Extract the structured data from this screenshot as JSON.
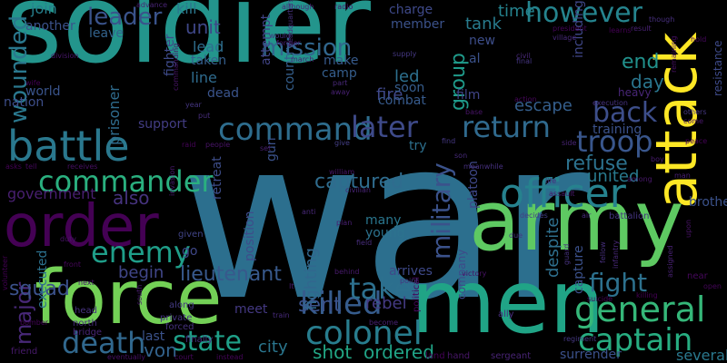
{
  "title": "",
  "words": [
    {
      "text": "war",
      "color": "#2c6f8e"
    },
    {
      "text": "soldier",
      "color": "#23958c"
    },
    {
      "text": "men",
      "color": "#20a486"
    },
    {
      "text": "army",
      "color": "#5ec962"
    },
    {
      "text": "force",
      "color": "#73d056"
    },
    {
      "text": "attack",
      "color": "#fde725"
    },
    {
      "text": "order",
      "color": "#440154"
    },
    {
      "text": "battle",
      "color": "#2a788e"
    },
    {
      "text": "officer",
      "color": "#26828e"
    },
    {
      "text": "general",
      "color": "#35b779"
    },
    {
      "text": "captain",
      "color": "#27ad81"
    },
    {
      "text": "colonel",
      "color": "#287d8e"
    },
    {
      "text": "command",
      "color": "#2e6d8e"
    },
    {
      "text": "commander",
      "color": "#2ab07f"
    },
    {
      "text": "killed",
      "color": "#365c8d"
    },
    {
      "text": "troop",
      "color": "#39568c"
    },
    {
      "text": "enemy",
      "color": "#1f9e89"
    },
    {
      "text": "return",
      "color": "#306a8e"
    },
    {
      "text": "later",
      "color": "#3e4a89"
    },
    {
      "text": "death",
      "color": "#31688e"
    },
    {
      "text": "state",
      "color": "#1fa088"
    },
    {
      "text": "take",
      "color": "#2d708e"
    },
    {
      "text": "leader",
      "color": "#3a538b"
    },
    {
      "text": "however",
      "color": "#25848e"
    },
    {
      "text": "wounded",
      "color": "#2a788e"
    },
    {
      "text": "fight",
      "color": "#2d718e"
    },
    {
      "text": "back",
      "color": "#3d4e8a"
    },
    {
      "text": "military",
      "color": "#3b528b"
    },
    {
      "text": "mission",
      "color": "#31678e"
    },
    {
      "text": "major",
      "color": "#482878"
    },
    {
      "text": "lieutenant",
      "color": "#38598c"
    },
    {
      "text": "captured",
      "color": "#2f6c8e"
    },
    {
      "text": "refuse",
      "color": "#2c728e"
    },
    {
      "text": "group",
      "color": "#1f9a8a"
    },
    {
      "text": "unit",
      "color": "#3f4788"
    },
    {
      "text": "end",
      "color": "#21918c"
    },
    {
      "text": "squad",
      "color": "#3b518b"
    },
    {
      "text": "also",
      "color": "#46337e"
    },
    {
      "text": "sent",
      "color": "#3b528b"
    },
    {
      "text": "shot",
      "color": "#22a785"
    },
    {
      "text": "ordered",
      "color": "#20a386"
    },
    {
      "text": "city",
      "color": "#2a768e"
    },
    {
      "text": "von",
      "color": "#33638d"
    },
    {
      "text": "despite",
      "color": "#2e6f8e"
    },
    {
      "text": "united",
      "color": "#297a8e"
    },
    {
      "text": "government",
      "color": "#481f70"
    },
    {
      "text": "escape",
      "color": "#355f8d"
    },
    {
      "text": "fighting",
      "color": "#31678e"
    },
    {
      "text": "rebel",
      "color": "#443a83"
    },
    {
      "text": "begin",
      "color": "#404688"
    },
    {
      "text": "day",
      "color": "#2a768e"
    },
    {
      "text": "tank",
      "color": "#287c8e"
    },
    {
      "text": "time",
      "color": "#25838e"
    },
    {
      "text": "kill",
      "color": "#2a788e"
    },
    {
      "text": "join",
      "color": "#26818e"
    },
    {
      "text": "lead",
      "color": "#2e6e8e"
    },
    {
      "text": "line",
      "color": "#2f6b8e"
    },
    {
      "text": "prisoner",
      "color": "#2f6c8e"
    },
    {
      "text": "training",
      "color": "#3b528b"
    },
    {
      "text": "fire",
      "color": "#3f4889"
    },
    {
      "text": "led",
      "color": "#2d708e"
    },
    {
      "text": "arrives",
      "color": "#3e4989"
    },
    {
      "text": "many",
      "color": "#2a768e"
    },
    {
      "text": "young",
      "color": "#2c728e"
    },
    {
      "text": "member",
      "color": "#3b528b"
    },
    {
      "text": "combat",
      "color": "#375b8d"
    },
    {
      "text": "soon",
      "color": "#365d8d"
    },
    {
      "text": "country",
      "color": "#355f8d"
    },
    {
      "text": "world",
      "color": "#3a548c"
    },
    {
      "text": "nation",
      "color": "#3d4e8a"
    },
    {
      "text": "several",
      "color": "#2a788e"
    },
    {
      "text": "surrender",
      "color": "#3b518b"
    },
    {
      "text": "including",
      "color": "#3f4788"
    },
    {
      "text": "heavy",
      "color": "#482677"
    },
    {
      "text": "try",
      "color": "#2d708e"
    },
    {
      "text": "film",
      "color": "#404588"
    },
    {
      "text": "fighter",
      "color": "#3e4a89"
    },
    {
      "text": "attempt",
      "color": "#414487"
    },
    {
      "text": "another",
      "color": "#3b528b"
    },
    {
      "text": "leave",
      "color": "#33638d"
    },
    {
      "text": "taken",
      "color": "#355f8d"
    },
    {
      "text": "dead",
      "color": "#3a548c"
    },
    {
      "text": "make",
      "color": "#375b8d"
    },
    {
      "text": "camp",
      "color": "#355e8d"
    },
    {
      "text": "support",
      "color": "#433d84"
    },
    {
      "text": "last",
      "color": "#3b528b"
    },
    {
      "text": "executed",
      "color": "#2c718e"
    },
    {
      "text": "go",
      "color": "#3f4788"
    },
    {
      "text": "retreat",
      "color": "#3d4d8a"
    },
    {
      "text": "gun",
      "color": "#3b528b"
    },
    {
      "text": "position",
      "color": "#3e4c8a"
    },
    {
      "text": "capture",
      "color": "#3b518b"
    },
    {
      "text": "brother",
      "color": "#3b528b"
    },
    {
      "text": "resistance",
      "color": "#3e4a89"
    },
    {
      "text": "new",
      "color": "#3d4e8a"
    },
    {
      "text": "charge",
      "color": "#3e4989"
    },
    {
      "text": "al",
      "color": "#3b528b"
    },
    {
      "text": "platoon",
      "color": "#3f4889"
    },
    {
      "text": "company",
      "color": "#3e4a89"
    },
    {
      "text": "meet",
      "color": "#443983"
    },
    {
      "text": "given",
      "color": "#414487"
    },
    {
      "text": "along",
      "color": "#443a83"
    },
    {
      "text": "private",
      "color": "#453581"
    },
    {
      "text": "forced",
      "color": "#46327e"
    },
    {
      "text": "finally",
      "color": "#472f7d"
    },
    {
      "text": "head",
      "color": "#46327e"
    },
    {
      "text": "north",
      "color": "#472c7a"
    },
    {
      "text": "bridge",
      "color": "#482475"
    },
    {
      "text": "friend",
      "color": "#481a6c"
    },
    {
      "text": "eventually",
      "color": "#471063"
    },
    {
      "text": "court",
      "color": "#46085c"
    },
    {
      "text": "instead",
      "color": "#450559"
    },
    {
      "text": "land",
      "color": "#440256"
    },
    {
      "text": "hand",
      "color": "#481769"
    },
    {
      "text": "sergeant",
      "color": "#482475"
    },
    {
      "text": "regiment",
      "color": "#453882"
    },
    {
      "text": "ally",
      "color": "#46307e"
    },
    {
      "text": "become",
      "color": "#482173"
    },
    {
      "text": "victory",
      "color": "#471365"
    },
    {
      "text": "political",
      "color": "#46085c"
    },
    {
      "text": "behind",
      "color": "#481a6c"
    },
    {
      "text": "train",
      "color": "#472a7a"
    },
    {
      "text": "bomber",
      "color": "#450457"
    },
    {
      "text": "volunteer",
      "color": "#440154"
    },
    {
      "text": "duty",
      "color": "#481467"
    },
    {
      "text": "front",
      "color": "#46075a"
    },
    {
      "text": "next",
      "color": "#48186a"
    },
    {
      "text": "south",
      "color": "#481c6e"
    },
    {
      "text": "plan",
      "color": "#482071"
    },
    {
      "text": "field",
      "color": "#472d7b"
    },
    {
      "text": "point",
      "color": "#463480"
    },
    {
      "text": "due",
      "color": "#453781"
    },
    {
      "text": "decides",
      "color": "#433e85"
    },
    {
      "text": "air",
      "color": "#472d7b"
    },
    {
      "text": "battalion",
      "color": "#453581"
    },
    {
      "text": "guard",
      "color": "#46327e"
    },
    {
      "text": "fellow",
      "color": "#472f7d"
    },
    {
      "text": "infantry",
      "color": "#482878"
    },
    {
      "text": "assigned",
      "color": "#482173"
    },
    {
      "text": "upon",
      "color": "#471365"
    },
    {
      "text": "near",
      "color": "#46085c"
    },
    {
      "text": "open",
      "color": "#450559"
    },
    {
      "text": "killing",
      "color": "#440154"
    },
    {
      "text": "suicide",
      "color": "#46075a"
    },
    {
      "text": "william",
      "color": "#481769"
    },
    {
      "text": "civilian",
      "color": "#482475"
    },
    {
      "text": "anti",
      "color": "#482878"
    },
    {
      "text": "life",
      "color": "#46327e"
    },
    {
      "text": "among",
      "color": "#48186a"
    },
    {
      "text": "assault",
      "color": "#481a6c"
    },
    {
      "text": "boy",
      "color": "#481c6e"
    },
    {
      "text": "man",
      "color": "#482071"
    },
    {
      "text": "son",
      "color": "#472a7a"
    },
    {
      "text": "meanwhile",
      "color": "#46307e"
    },
    {
      "text": "find",
      "color": "#453882"
    },
    {
      "text": "give",
      "color": "#433e85"
    },
    {
      "text": "set",
      "color": "#481f70"
    },
    {
      "text": "people",
      "color": "#481467"
    },
    {
      "text": "raid",
      "color": "#450457"
    },
    {
      "text": "receives",
      "color": "#471063"
    },
    {
      "text": "tell",
      "color": "#46085c"
    },
    {
      "text": "asks",
      "color": "#440256"
    },
    {
      "text": "put",
      "color": "#472d7b"
    },
    {
      "text": "year",
      "color": "#453581"
    },
    {
      "text": "headquarters",
      "color": "#46327e"
    },
    {
      "text": "part",
      "color": "#482878"
    },
    {
      "text": "away",
      "color": "#482173"
    },
    {
      "text": "commanding",
      "color": "#471365"
    },
    {
      "text": "division",
      "color": "#481769"
    },
    {
      "text": "wife",
      "color": "#440154"
    },
    {
      "text": "advance",
      "color": "#482475"
    },
    {
      "text": "radio",
      "color": "#481a6c"
    },
    {
      "text": "although",
      "color": "#472c7a"
    },
    {
      "text": "would",
      "color": "#46307e"
    },
    {
      "text": "former",
      "color": "#481c6e"
    },
    {
      "text": "march",
      "color": "#482071"
    },
    {
      "text": "supply",
      "color": "#453882"
    },
    {
      "text": "civil",
      "color": "#482878"
    },
    {
      "text": "final",
      "color": "#453581"
    },
    {
      "text": "base",
      "color": "#481467"
    },
    {
      "text": "action",
      "color": "#46075a"
    },
    {
      "text": "president",
      "color": "#450559"
    },
    {
      "text": "village",
      "color": "#472a7a"
    },
    {
      "text": "execution",
      "color": "#46327e"
    },
    {
      "text": "learns",
      "color": "#440154"
    },
    {
      "text": "result",
      "color": "#482173"
    },
    {
      "text": "remaining",
      "color": "#471063"
    },
    {
      "text": "though",
      "color": "#472f7d"
    },
    {
      "text": "hold",
      "color": "#46085c"
    },
    {
      "text": "others",
      "color": "#453781"
    },
    {
      "text": "come",
      "color": "#481769"
    },
    {
      "text": "peace",
      "color": "#440256"
    },
    {
      "text": "side",
      "color": "#482475"
    },
    {
      "text": "invasion",
      "color": "#481a6c"
    },
    {
      "text": "It",
      "color": "#481c6e"
    }
  ]
}
